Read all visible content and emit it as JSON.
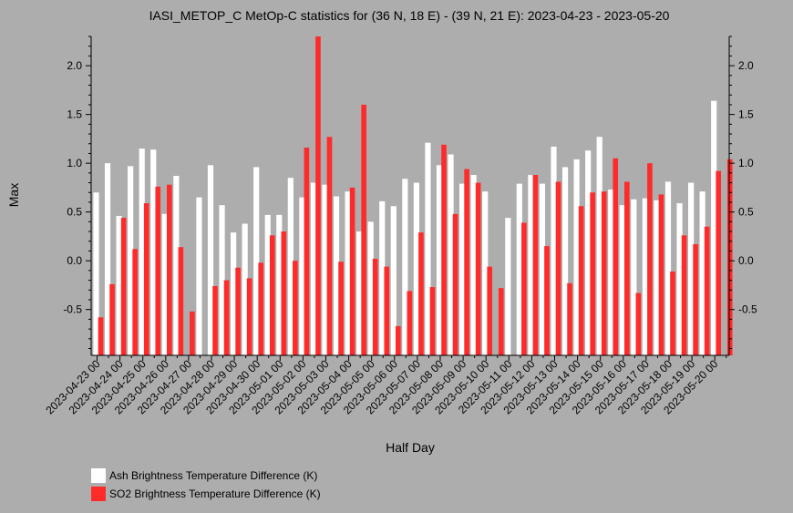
{
  "chart_data": {
    "type": "bar",
    "title": "IASI_METOP_C MetOp-C statistics for (36 N, 18 E) - (39 N, 21 E): 2023-04-23 - 2023-05-20",
    "xlabel": "Half Day",
    "ylabel": "Max",
    "ylim": [
      -0.97,
      2.3
    ],
    "yticks": [
      -0.5,
      0.0,
      0.5,
      1.0,
      1.5,
      2.0
    ],
    "ytick_labels": [
      "-0.5",
      "0.0",
      "0.5",
      "1.0",
      "1.5",
      "2.0"
    ],
    "xtick_labels": [
      "2023-04-23 00",
      "2023-04-24 00",
      "2023-04-25 00",
      "2023-04-26 00",
      "2023-04-27 00",
      "2023-04-28 00",
      "2023-04-29 00",
      "2023-04-30 00",
      "2023-05-01 00",
      "2023-05-02 00",
      "2023-05-03 00",
      "2023-05-04 00",
      "2023-05-05 00",
      "2023-05-06 00",
      "2023-05-07 00",
      "2023-05-08 00",
      "2023-05-09 00",
      "2023-05-10 00",
      "2023-05-11 00",
      "2023-05-12 00",
      "2023-05-13 00",
      "2023-05-14 00",
      "2023-05-15 00",
      "2023-05-16 00",
      "2023-05-17 00",
      "2023-05-18 00",
      "2023-05-19 00",
      "2023-05-20 00"
    ],
    "categories": [
      "2023-04-23 00",
      "2023-04-23 12",
      "2023-04-24 00",
      "2023-04-24 12",
      "2023-04-25 00",
      "2023-04-25 12",
      "2023-04-26 00",
      "2023-04-26 12",
      "2023-04-27 00",
      "2023-04-27 12",
      "2023-04-28 00",
      "2023-04-28 12",
      "2023-04-29 00",
      "2023-04-29 12",
      "2023-04-30 00",
      "2023-04-30 12",
      "2023-05-01 00",
      "2023-05-01 12",
      "2023-05-02 00",
      "2023-05-02 12",
      "2023-05-03 00",
      "2023-05-03 12",
      "2023-05-04 00",
      "2023-05-04 12",
      "2023-05-05 00",
      "2023-05-05 12",
      "2023-05-06 00",
      "2023-05-06 12",
      "2023-05-07 00",
      "2023-05-07 12",
      "2023-05-08 00",
      "2023-05-08 12",
      "2023-05-09 00",
      "2023-05-09 12",
      "2023-05-10 00",
      "2023-05-10 12",
      "2023-05-11 00",
      "2023-05-11 12",
      "2023-05-12 00",
      "2023-05-12 12",
      "2023-05-13 00",
      "2023-05-13 12",
      "2023-05-14 00",
      "2023-05-14 12",
      "2023-05-15 00",
      "2023-05-15 12",
      "2023-05-16 00",
      "2023-05-16 12",
      "2023-05-17 00",
      "2023-05-17 12",
      "2023-05-18 00",
      "2023-05-18 12",
      "2023-05-19 00",
      "2023-05-19 12",
      "2023-05-20 00",
      "2023-05-20 12"
    ],
    "series": [
      {
        "name": "Ash Brightness Temperature Difference (K)",
        "color": "#ffffff",
        "values": [
          0.7,
          1.0,
          0.46,
          0.97,
          1.15,
          1.14,
          0.48,
          0.87,
          null,
          0.65,
          0.98,
          0.57,
          0.29,
          0.38,
          0.96,
          0.47,
          0.47,
          0.85,
          0.65,
          0.8,
          0.78,
          0.66,
          0.71,
          0.3,
          0.4,
          0.61,
          0.56,
          0.84,
          0.8,
          1.21,
          0.98,
          1.09,
          0.79,
          0.88,
          0.71,
          null,
          0.44,
          0.79,
          0.88,
          0.79,
          1.17,
          0.96,
          1.04,
          1.13,
          1.27,
          0.73,
          0.57,
          0.63,
          0.64,
          0.62,
          0.81,
          0.59,
          0.8,
          0.71,
          1.64,
          null
        ]
      },
      {
        "name": "SO2 Brightness Temperature Difference (K)",
        "color": "#ff2a2a",
        "values": [
          -0.58,
          -0.24,
          0.44,
          0.12,
          0.59,
          0.76,
          0.78,
          0.14,
          -0.52,
          null,
          -0.26,
          -0.2,
          -0.07,
          -0.18,
          -0.02,
          0.26,
          0.3,
          0.0,
          1.16,
          2.32,
          1.27,
          -0.01,
          0.75,
          1.6,
          0.02,
          -0.06,
          -0.67,
          -0.31,
          0.29,
          -0.27,
          1.19,
          0.48,
          0.94,
          0.8,
          -0.06,
          -0.28,
          null,
          0.39,
          0.88,
          0.15,
          0.81,
          -0.23,
          0.56,
          0.7,
          0.71,
          1.05,
          0.81,
          -0.33,
          1.0,
          0.68,
          -0.11,
          0.26,
          0.17,
          0.35,
          0.92,
          1.04
        ]
      }
    ],
    "legend_position": "bottom-left",
    "grid": false
  }
}
